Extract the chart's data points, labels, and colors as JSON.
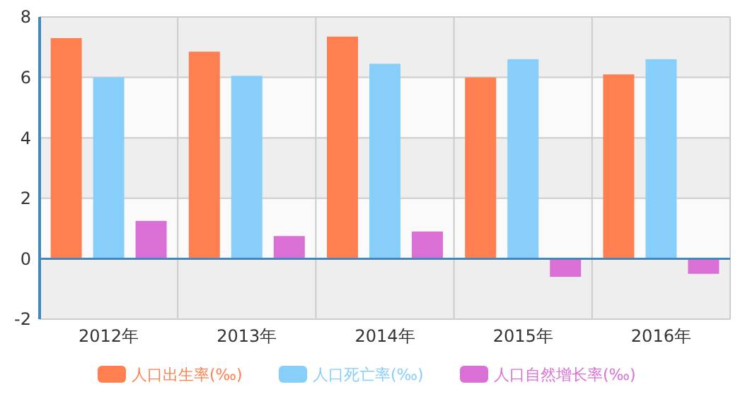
{
  "chart_data": {
    "type": "bar",
    "categories": [
      "2012年",
      "2013年",
      "2014年",
      "2015年",
      "2016年"
    ],
    "series": [
      {
        "name": "人口出生率(‰)",
        "color": "#ff7f50",
        "values": [
          7.3,
          6.85,
          7.35,
          6.0,
          6.1
        ]
      },
      {
        "name": "人口死亡率(‰)",
        "color": "#87cefa",
        "values": [
          6.0,
          6.05,
          6.45,
          6.6,
          6.6
        ]
      },
      {
        "name": "人口自然增长率(‰)",
        "color": "#da70d6",
        "values": [
          1.25,
          0.75,
          0.9,
          -0.6,
          -0.5
        ]
      }
    ],
    "ylim": [
      -2,
      8
    ],
    "yticks": [
      -2,
      0,
      2,
      4,
      6,
      8
    ],
    "grid": true,
    "legend": "bottom",
    "ref_lines": [
      {
        "axis": "y",
        "value": 0,
        "color": "#4488bb"
      }
    ]
  }
}
